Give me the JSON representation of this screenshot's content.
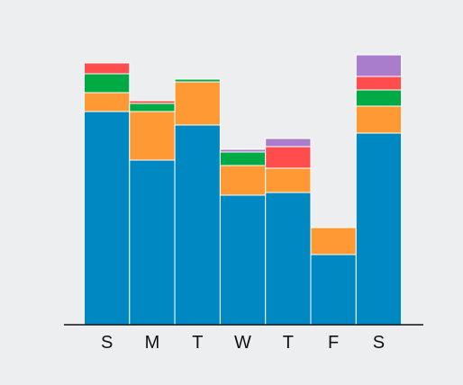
{
  "chart_data": {
    "type": "bar",
    "stacked": true,
    "categories": [
      "S",
      "M",
      "T",
      "W",
      "T",
      "F",
      "S"
    ],
    "y_range": [
      0,
      100
    ],
    "grid": false,
    "legend": "none",
    "series": [
      {
        "color": "#0088c2",
        "values": [
          79,
          61,
          74,
          48,
          49,
          26,
          71
        ]
      },
      {
        "color": "#ff9933",
        "values": [
          7,
          18,
          16,
          11,
          9,
          10,
          10
        ]
      },
      {
        "color": "#00aa44",
        "values": [
          7,
          3,
          1,
          5,
          0,
          0,
          6
        ]
      },
      {
        "color": "#ff4d4d",
        "values": [
          4,
          1,
          0,
          0,
          8,
          0,
          5
        ]
      },
      {
        "color": "#aa7ccc",
        "values": [
          0,
          0,
          0,
          1,
          3,
          0,
          8
        ]
      }
    ]
  },
  "colors": {
    "background": "#eceeef",
    "axis": "#111111",
    "bar_gap": "#ffffff"
  }
}
